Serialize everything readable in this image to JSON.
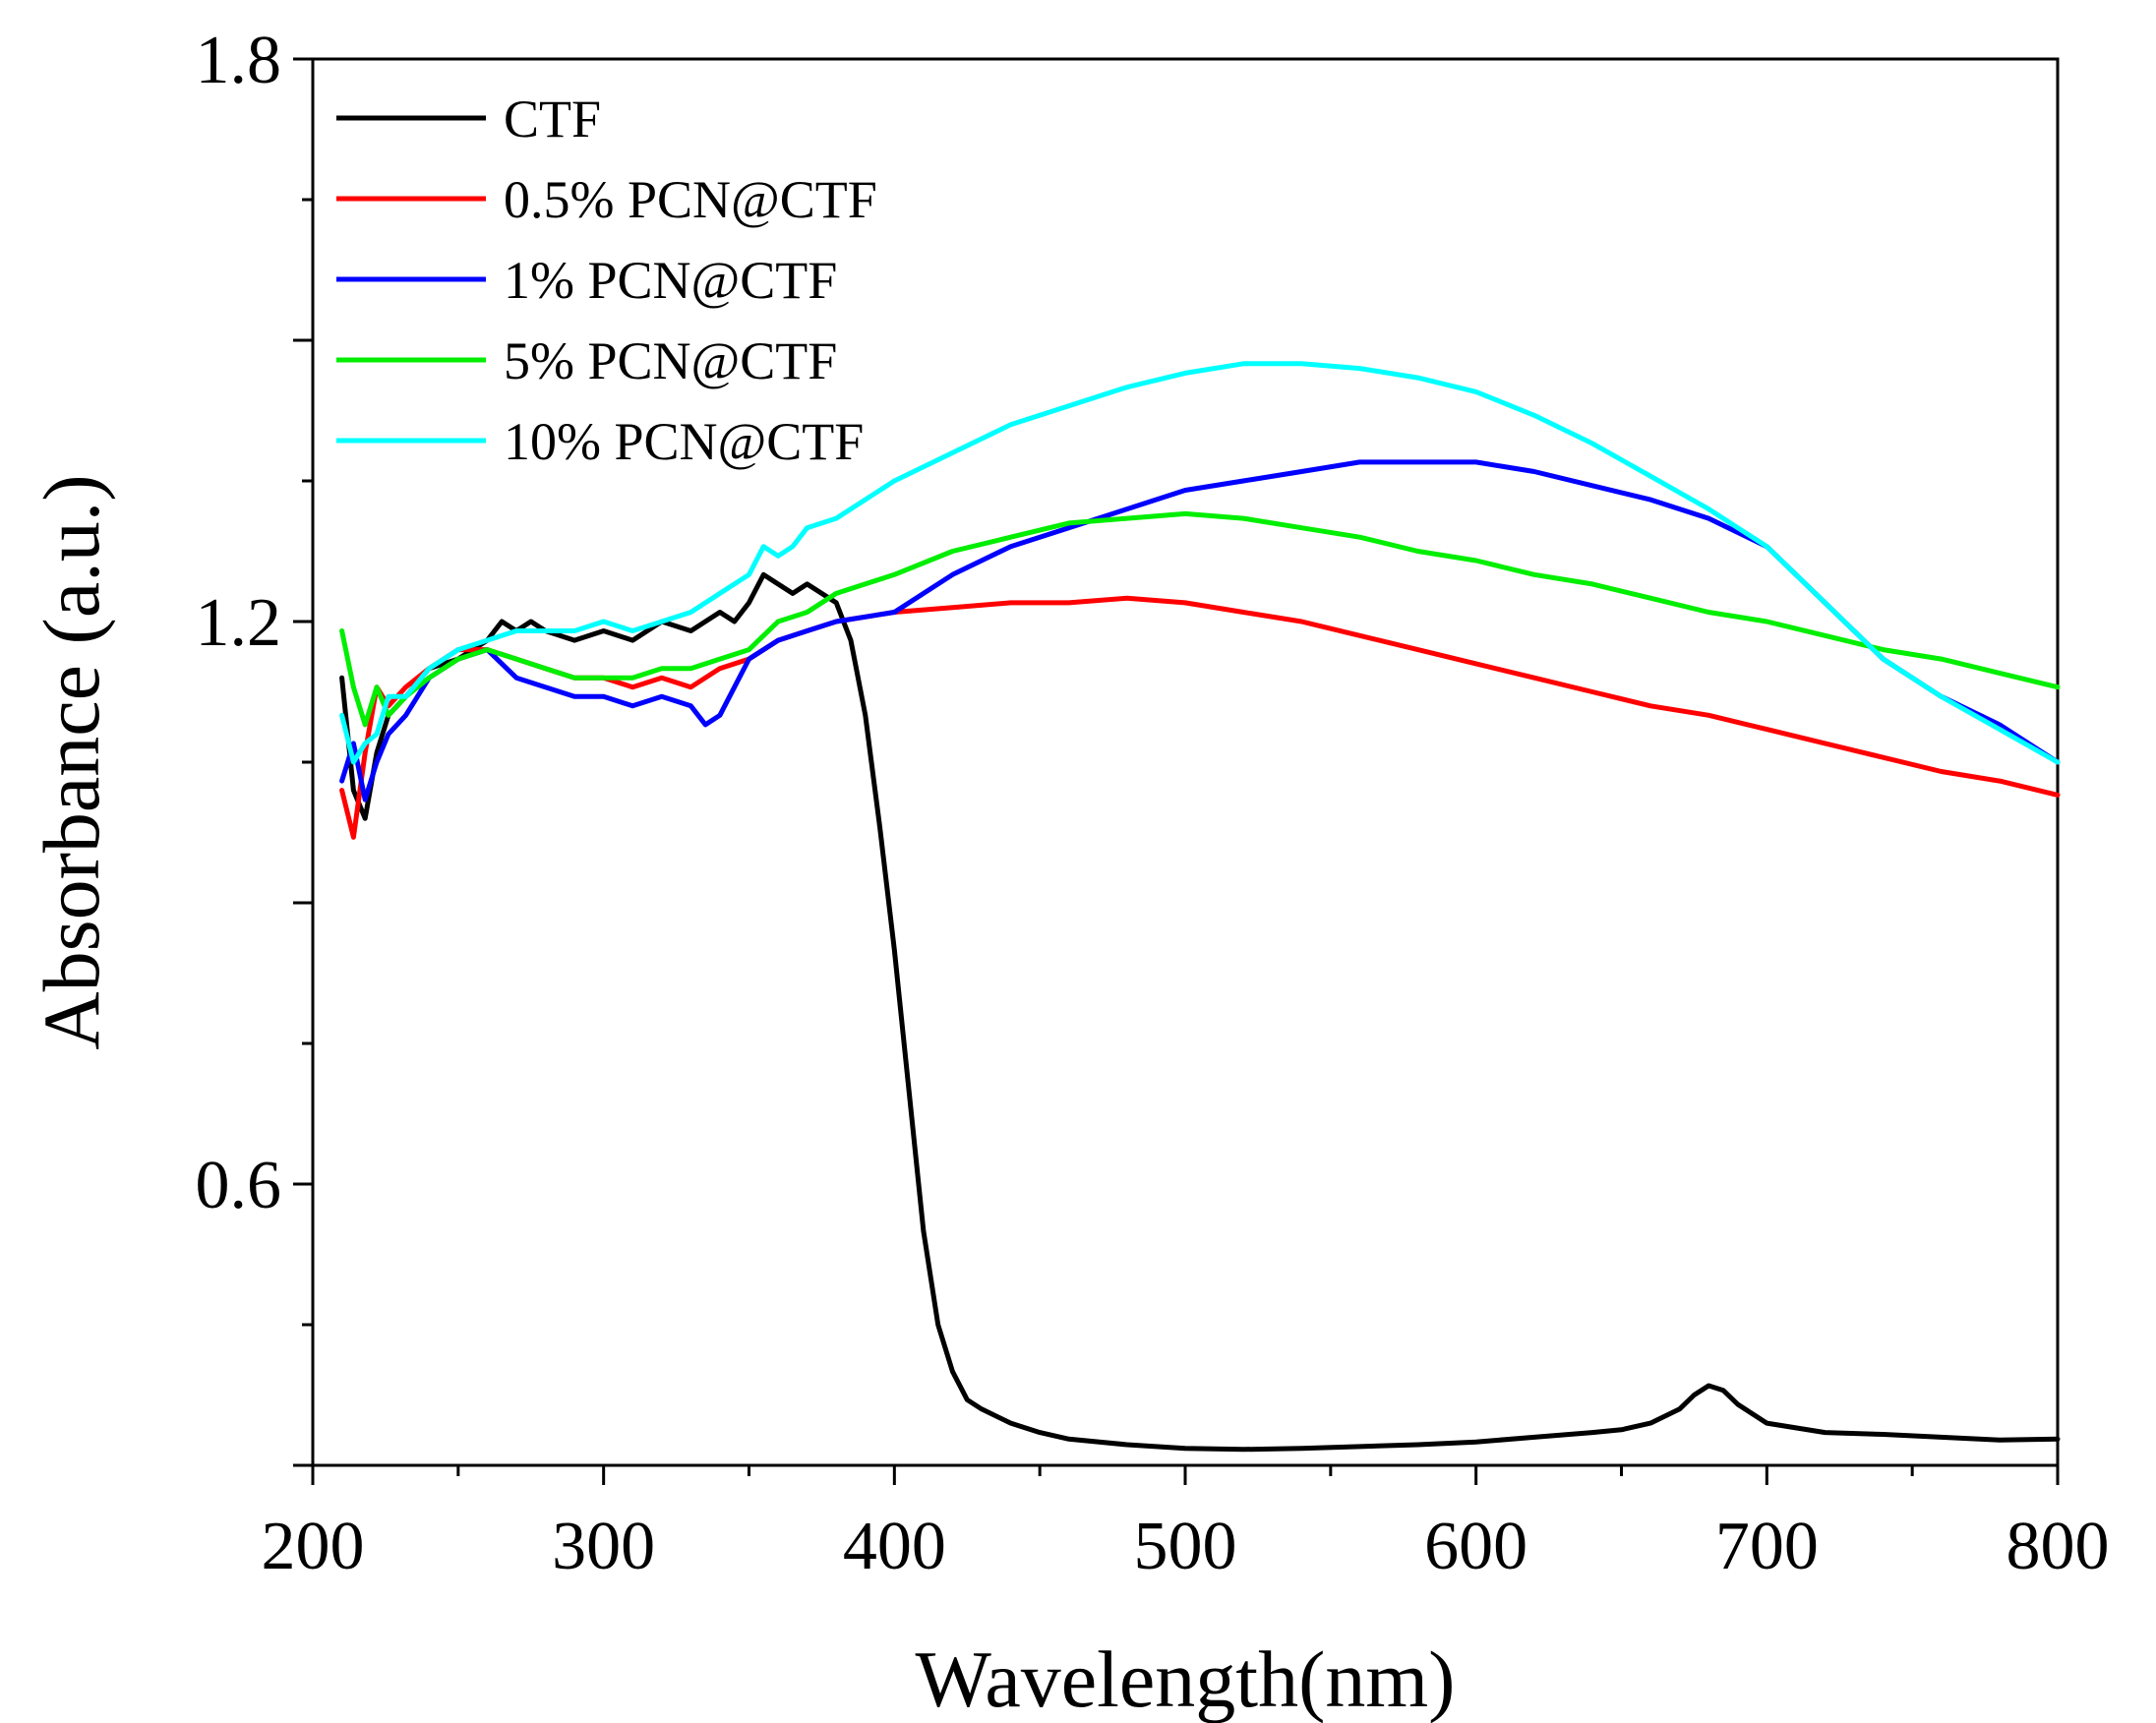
{
  "chart_data": {
    "type": "line",
    "title": "",
    "xlabel": "Wavelength(nm)",
    "ylabel": "Absorbance (a.u.)",
    "xlim": [
      200,
      800
    ],
    "ylim": [
      0.3,
      1.8
    ],
    "x_ticks": [
      200,
      300,
      400,
      500,
      600,
      700,
      800
    ],
    "x_tick_labels": [
      "200",
      "300",
      "400",
      "500",
      "600",
      "700",
      "800"
    ],
    "y_ticks": [
      0.6,
      1.2,
      1.8
    ],
    "y_tick_labels": [
      "0.6",
      "1.2",
      "1.8"
    ],
    "grid": false,
    "legend_position": "top-left",
    "series": [
      {
        "name": "CTF",
        "color": "#000000",
        "x": [
          210,
          214,
          218,
          222,
          226,
          232,
          240,
          250,
          260,
          265,
          270,
          275,
          280,
          290,
          300,
          310,
          320,
          330,
          340,
          345,
          350,
          355,
          360,
          365,
          370,
          375,
          380,
          385,
          390,
          395,
          400,
          405,
          410,
          415,
          420,
          425,
          430,
          440,
          450,
          460,
          480,
          500,
          520,
          540,
          560,
          580,
          600,
          620,
          640,
          650,
          660,
          670,
          675,
          680,
          685,
          690,
          700,
          710,
          720,
          740,
          760,
          780,
          800
        ],
        "y": [
          1.14,
          1.02,
          0.99,
          1.06,
          1.1,
          1.12,
          1.15,
          1.16,
          1.18,
          1.2,
          1.19,
          1.2,
          1.19,
          1.18,
          1.19,
          1.18,
          1.2,
          1.19,
          1.21,
          1.2,
          1.22,
          1.25,
          1.24,
          1.23,
          1.24,
          1.23,
          1.22,
          1.18,
          1.1,
          0.98,
          0.85,
          0.7,
          0.55,
          0.45,
          0.4,
          0.37,
          0.36,
          0.345,
          0.335,
          0.328,
          0.322,
          0.318,
          0.317,
          0.318,
          0.32,
          0.322,
          0.325,
          0.33,
          0.335,
          0.338,
          0.345,
          0.36,
          0.375,
          0.385,
          0.38,
          0.365,
          0.345,
          0.34,
          0.335,
          0.333,
          0.33,
          0.327,
          0.328
        ]
      },
      {
        "name": "0.5% PCN@CTF",
        "color": "#ff0000",
        "x": [
          210,
          214,
          218,
          222,
          226,
          232,
          240,
          250,
          260,
          270,
          280,
          290,
          300,
          310,
          320,
          330,
          340,
          350,
          360,
          370,
          380,
          400,
          420,
          440,
          460,
          480,
          500,
          520,
          540,
          560,
          580,
          600,
          620,
          640,
          660,
          680,
          700,
          720,
          740,
          760,
          780,
          800
        ],
        "y": [
          1.02,
          0.97,
          1.06,
          1.13,
          1.11,
          1.13,
          1.15,
          1.17,
          1.17,
          1.16,
          1.15,
          1.14,
          1.14,
          1.13,
          1.14,
          1.13,
          1.15,
          1.16,
          1.18,
          1.19,
          1.2,
          1.21,
          1.215,
          1.22,
          1.22,
          1.225,
          1.22,
          1.21,
          1.2,
          1.185,
          1.17,
          1.155,
          1.14,
          1.125,
          1.11,
          1.1,
          1.085,
          1.07,
          1.055,
          1.04,
          1.03,
          1.015
        ]
      },
      {
        "name": "1% PCN@CTF",
        "color": "#0000ff",
        "x": [
          210,
          214,
          218,
          222,
          226,
          232,
          240,
          250,
          260,
          270,
          280,
          290,
          300,
          310,
          320,
          330,
          335,
          340,
          345,
          350,
          355,
          360,
          370,
          380,
          400,
          420,
          440,
          460,
          480,
          500,
          520,
          540,
          560,
          580,
          600,
          620,
          640,
          660,
          680,
          700,
          710,
          720,
          730,
          740,
          760,
          780,
          800
        ],
        "y": [
          1.03,
          1.07,
          1.01,
          1.05,
          1.08,
          1.1,
          1.14,
          1.16,
          1.17,
          1.14,
          1.13,
          1.12,
          1.12,
          1.11,
          1.12,
          1.11,
          1.09,
          1.1,
          1.13,
          1.16,
          1.17,
          1.18,
          1.19,
          1.2,
          1.21,
          1.25,
          1.28,
          1.3,
          1.32,
          1.34,
          1.35,
          1.36,
          1.37,
          1.37,
          1.37,
          1.36,
          1.345,
          1.33,
          1.31,
          1.28,
          1.25,
          1.22,
          1.19,
          1.16,
          1.12,
          1.09,
          1.05
        ]
      },
      {
        "name": "5% PCN@CTF",
        "color": "#00ee00",
        "x": [
          210,
          214,
          218,
          222,
          226,
          232,
          240,
          250,
          260,
          270,
          280,
          290,
          300,
          310,
          320,
          330,
          340,
          350,
          360,
          370,
          380,
          400,
          420,
          440,
          460,
          480,
          500,
          520,
          540,
          560,
          580,
          600,
          620,
          640,
          660,
          680,
          700,
          720,
          740,
          760,
          780,
          800
        ],
        "y": [
          1.19,
          1.13,
          1.09,
          1.13,
          1.1,
          1.12,
          1.14,
          1.16,
          1.17,
          1.16,
          1.15,
          1.14,
          1.14,
          1.14,
          1.15,
          1.15,
          1.16,
          1.17,
          1.2,
          1.21,
          1.23,
          1.25,
          1.275,
          1.29,
          1.305,
          1.31,
          1.315,
          1.31,
          1.3,
          1.29,
          1.275,
          1.265,
          1.25,
          1.24,
          1.225,
          1.21,
          1.2,
          1.185,
          1.17,
          1.16,
          1.145,
          1.13
        ]
      },
      {
        "name": "10% PCN@CTF",
        "color": "#00ffff",
        "x": [
          210,
          214,
          218,
          222,
          226,
          232,
          240,
          250,
          260,
          270,
          280,
          290,
          300,
          310,
          320,
          330,
          340,
          350,
          355,
          360,
          365,
          370,
          380,
          400,
          420,
          440,
          460,
          480,
          500,
          520,
          540,
          560,
          580,
          600,
          620,
          640,
          660,
          680,
          700,
          710,
          720,
          730,
          740,
          760,
          780,
          800
        ],
        "y": [
          1.1,
          1.05,
          1.07,
          1.08,
          1.12,
          1.12,
          1.15,
          1.17,
          1.18,
          1.19,
          1.19,
          1.19,
          1.2,
          1.19,
          1.2,
          1.21,
          1.23,
          1.25,
          1.28,
          1.27,
          1.28,
          1.3,
          1.31,
          1.35,
          1.38,
          1.41,
          1.43,
          1.45,
          1.465,
          1.475,
          1.475,
          1.47,
          1.46,
          1.445,
          1.42,
          1.39,
          1.355,
          1.32,
          1.28,
          1.25,
          1.22,
          1.19,
          1.16,
          1.12,
          1.085,
          1.05
        ]
      }
    ]
  }
}
